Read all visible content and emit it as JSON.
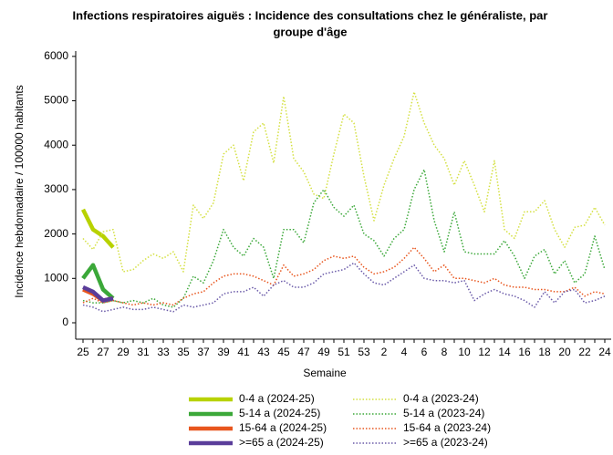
{
  "chart_data": {
    "type": "line",
    "title": "Infections respiratoires aiguës : Incidence des consultations chez le généraliste, par",
    "subtitle": "groupe d'âge",
    "x_label": "Semaine",
    "y_label": "Incidence hebdomadaire / 100000 habitants",
    "categories": [
      "25",
      null,
      "27",
      null,
      "29",
      null,
      "31",
      null,
      "33",
      null,
      "35",
      null,
      "37",
      null,
      "39",
      null,
      "41",
      null,
      "43",
      null,
      "45",
      null,
      "47",
      null,
      "49",
      null,
      "51",
      null,
      "53",
      null,
      "2",
      null,
      "4",
      null,
      "6",
      null,
      "8",
      null,
      "10",
      null,
      "12",
      null,
      "14",
      null,
      "16",
      null,
      "18",
      null,
      "20",
      null,
      "22",
      null,
      "24"
    ],
    "ylim": [
      -370,
      6120
    ],
    "yticks": [
      0,
      1000,
      2000,
      3000,
      4000,
      5000,
      6000
    ],
    "series": [
      {
        "name": "0-4 a (2024-25)",
        "color": "#b8d200",
        "style": "solid",
        "values": [
          2550,
          2100,
          1950,
          1700,
          null,
          null,
          null,
          null,
          null,
          null,
          null,
          null,
          null,
          null,
          null,
          null,
          null,
          null,
          null,
          null,
          null,
          null,
          null,
          null,
          null,
          null,
          null,
          null,
          null,
          null,
          null,
          null,
          null,
          null,
          null,
          null,
          null,
          null,
          null,
          null,
          null,
          null,
          null,
          null,
          null,
          null,
          null,
          null,
          null,
          null,
          null,
          null,
          null
        ]
      },
      {
        "name": "0-4 a (2023-24)",
        "color": "#d4e040",
        "style": "dotted",
        "values": [
          1900,
          1650,
          2050,
          2100,
          1150,
          1200,
          1400,
          1550,
          1450,
          1600,
          1150,
          2650,
          2350,
          2700,
          3800,
          4000,
          3200,
          4300,
          4500,
          3600,
          5100,
          3700,
          3400,
          2900,
          2800,
          3800,
          4700,
          4500,
          3300,
          2300,
          3100,
          3700,
          4200,
          5200,
          4500,
          4000,
          3700,
          3100,
          3650,
          3100,
          2500,
          3650,
          2100,
          1900,
          2500,
          2500,
          2750,
          2100,
          1700,
          2150,
          2200,
          2600,
          2200
        ]
      },
      {
        "name": "5-14 a (2024-25)",
        "color": "#3ba839",
        "style": "solid",
        "values": [
          1000,
          1300,
          750,
          550,
          null,
          null,
          null,
          null,
          null,
          null,
          null,
          null,
          null,
          null,
          null,
          null,
          null,
          null,
          null,
          null,
          null,
          null,
          null,
          null,
          null,
          null,
          null,
          null,
          null,
          null,
          null,
          null,
          null,
          null,
          null,
          null,
          null,
          null,
          null,
          null,
          null,
          null,
          null,
          null,
          null,
          null,
          null,
          null,
          null,
          null,
          null,
          null,
          null
        ]
      },
      {
        "name": "5-14 a (2023-24)",
        "color": "#3ba839",
        "style": "dotted",
        "values": [
          500,
          450,
          450,
          500,
          450,
          500,
          450,
          550,
          400,
          350,
          550,
          1050,
          900,
          1400,
          2100,
          1700,
          1500,
          1900,
          1700,
          1000,
          2100,
          2100,
          1800,
          2700,
          3000,
          2600,
          2400,
          2650,
          2000,
          1850,
          1500,
          1900,
          2100,
          3000,
          3450,
          2300,
          1600,
          2500,
          1600,
          1550,
          1550,
          1550,
          1850,
          1500,
          1000,
          1500,
          1650,
          1100,
          1400,
          900,
          1100,
          1950,
          1200
        ]
      },
      {
        "name": "15-64 a (2024-25)",
        "color": "#e8561e",
        "style": "solid",
        "values": [
          750,
          650,
          500,
          550,
          null,
          null,
          null,
          null,
          null,
          null,
          null,
          null,
          null,
          null,
          null,
          null,
          null,
          null,
          null,
          null,
          null,
          null,
          null,
          null,
          null,
          null,
          null,
          null,
          null,
          null,
          null,
          null,
          null,
          null,
          null,
          null,
          null,
          null,
          null,
          null,
          null,
          null,
          null,
          null,
          null,
          null,
          null,
          null,
          null,
          null,
          null,
          null,
          null
        ]
      },
      {
        "name": "15-64 a (2023-24)",
        "color": "#e8561e",
        "style": "dotted",
        "values": [
          450,
          550,
          450,
          500,
          450,
          400,
          450,
          400,
          450,
          400,
          550,
          650,
          700,
          900,
          1050,
          1100,
          1100,
          1050,
          950,
          850,
          1300,
          1050,
          1100,
          1200,
          1400,
          1500,
          1450,
          1500,
          1250,
          1100,
          1150,
          1250,
          1450,
          1700,
          1450,
          1150,
          1300,
          1000,
          1000,
          950,
          900,
          1000,
          850,
          800,
          800,
          750,
          750,
          700,
          700,
          800,
          600,
          700,
          650
        ]
      },
      {
        "name": ">=65 a (2024-25)",
        "color": "#5a3d9a",
        "style": "solid",
        "values": [
          800,
          700,
          500,
          550,
          null,
          null,
          null,
          null,
          null,
          null,
          null,
          null,
          null,
          null,
          null,
          null,
          null,
          null,
          null,
          null,
          null,
          null,
          null,
          null,
          null,
          null,
          null,
          null,
          null,
          null,
          null,
          null,
          null,
          null,
          null,
          null,
          null,
          null,
          null,
          null,
          null,
          null,
          null,
          null,
          null,
          null,
          null,
          null,
          null,
          null,
          null,
          null,
          null
        ]
      },
      {
        "name": ">=65 a (2023-24)",
        "color": "#6a5aa8",
        "style": "dotted",
        "values": [
          400,
          350,
          250,
          300,
          350,
          300,
          300,
          350,
          300,
          250,
          400,
          350,
          400,
          450,
          650,
          700,
          700,
          800,
          600,
          850,
          950,
          800,
          800,
          900,
          1100,
          1150,
          1200,
          1350,
          1100,
          900,
          850,
          1000,
          1150,
          1300,
          1000,
          950,
          950,
          900,
          950,
          500,
          650,
          750,
          650,
          600,
          500,
          350,
          700,
          450,
          700,
          750,
          450,
          500,
          600
        ]
      }
    ]
  }
}
